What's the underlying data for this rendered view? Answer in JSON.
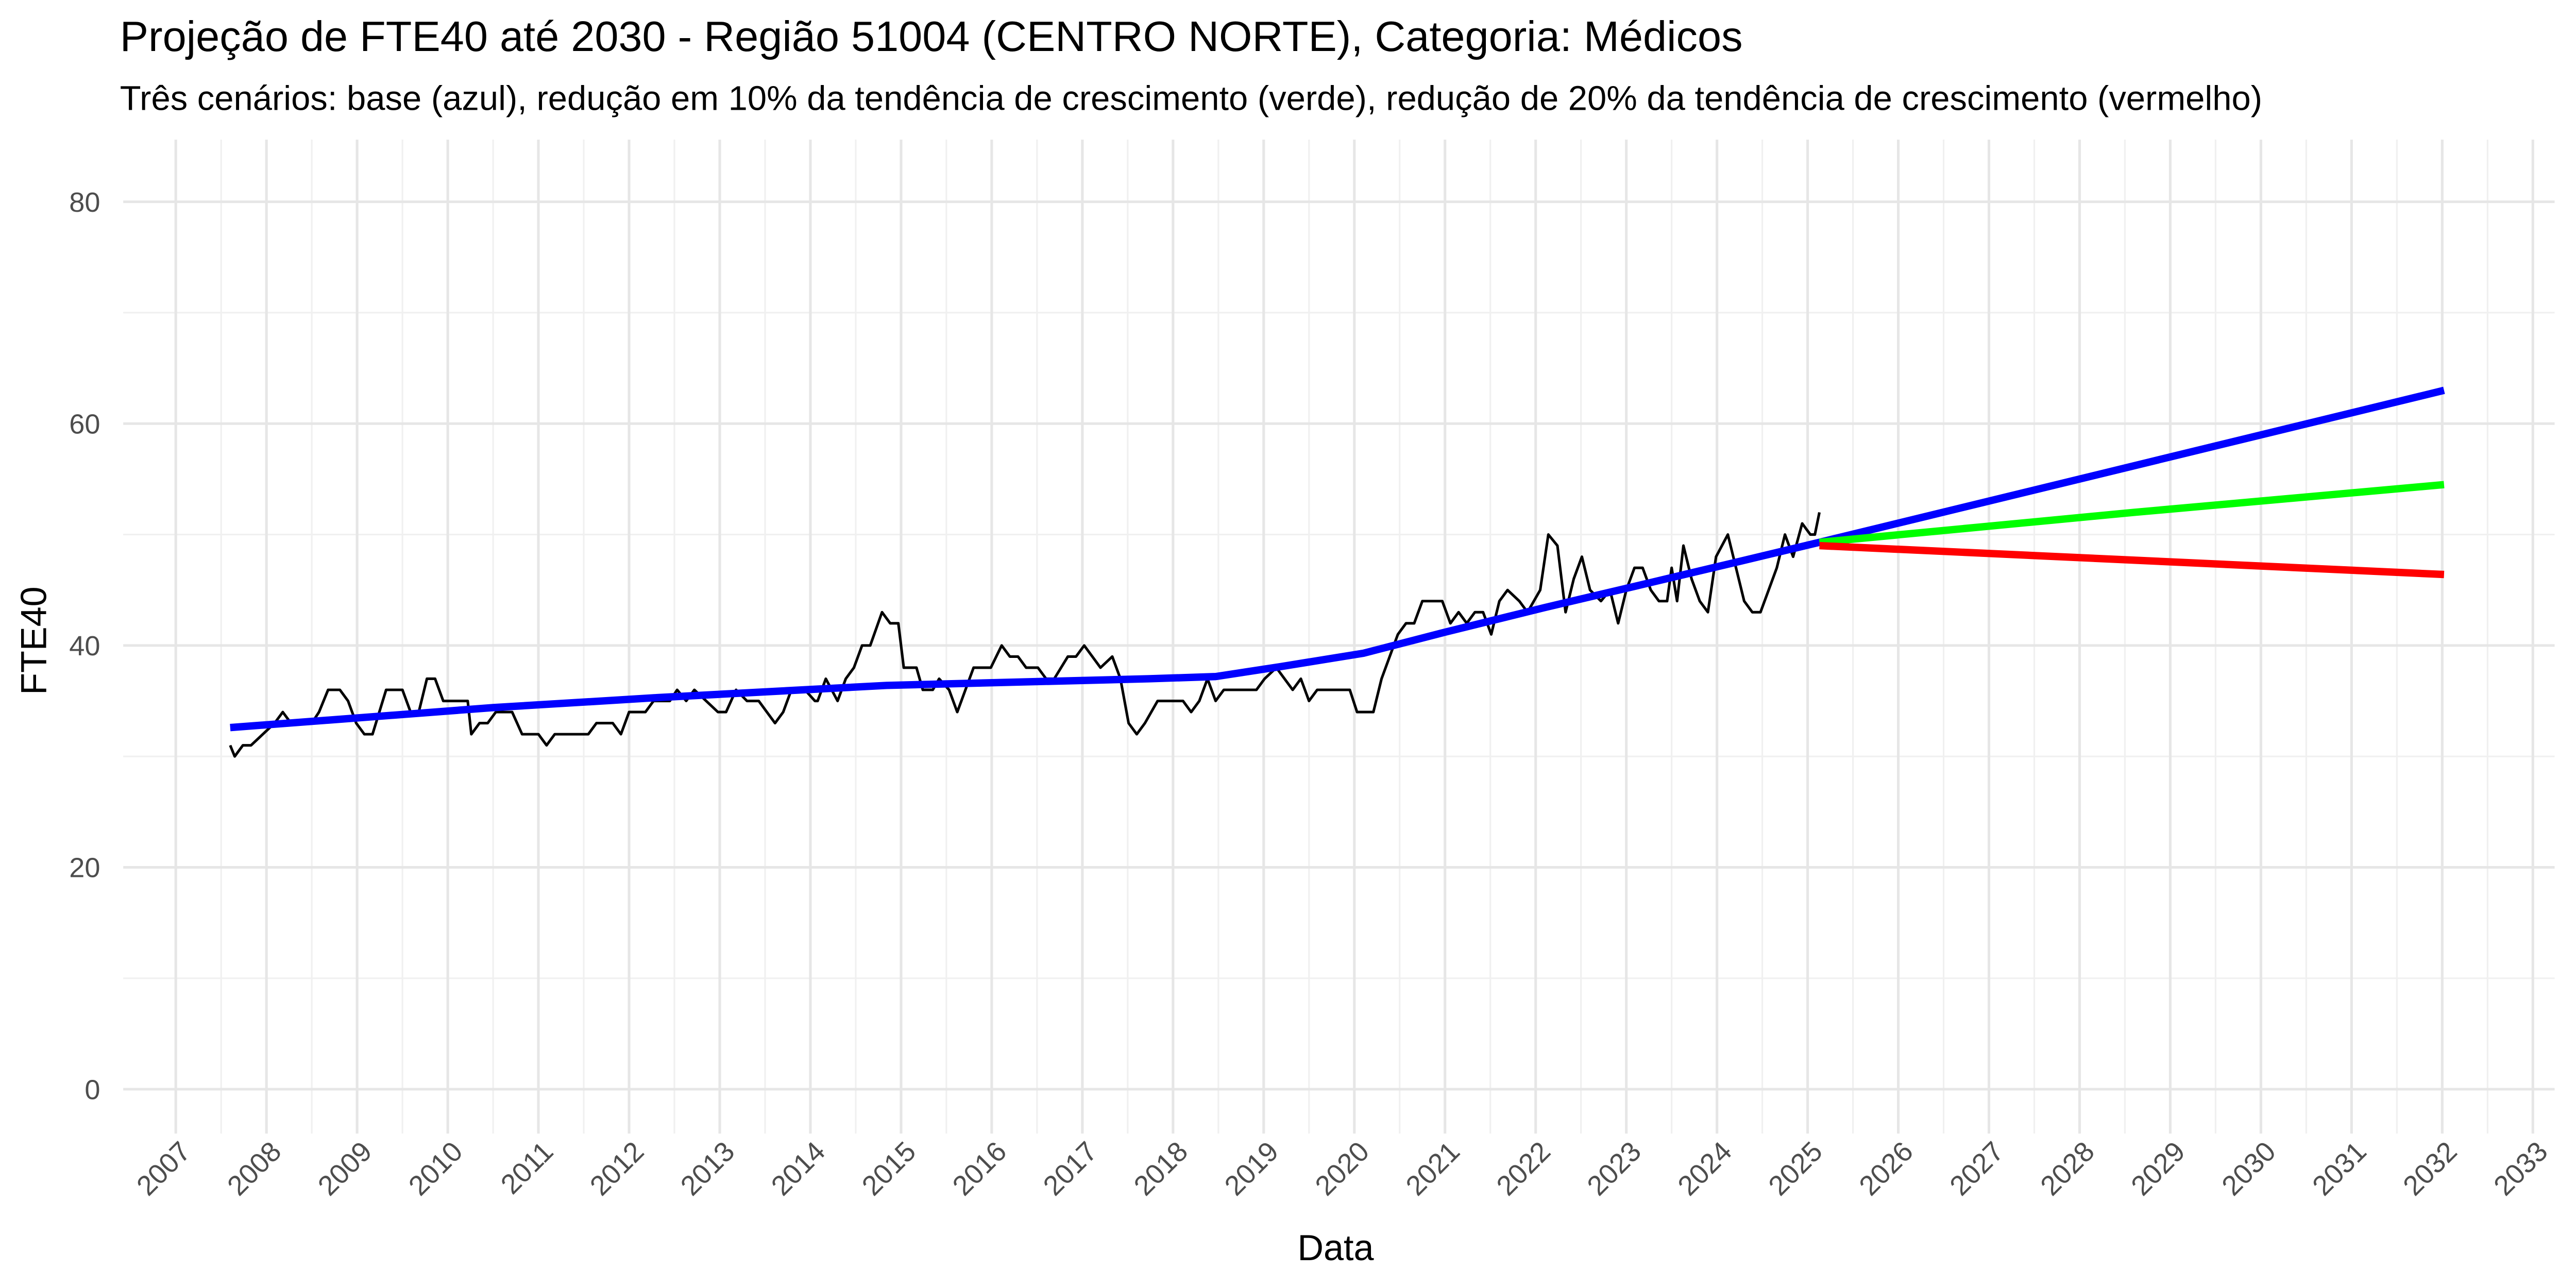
{
  "chart_data": {
    "type": "line",
    "title": "Projeção de FTE40 até 2030 - Região 51004 (CENTRO NORTE), Categoria: Médicos",
    "subtitle": "Três cenários: base (azul), redução em 10% da tendência de crescimento (verde), redução de 20% da tendência de crescimento (vermelho)",
    "x_label": "Data",
    "y_label": "FTE40",
    "xlim": [
      2006.42,
      2033.24
    ],
    "ylim": [
      -4,
      85.6
    ],
    "xticks": [
      2007,
      2008,
      2009,
      2010,
      2011,
      2012,
      2013,
      2014,
      2015,
      2016,
      2017,
      2018,
      2019,
      2020,
      2021,
      2022,
      2023,
      2024,
      2025,
      2026,
      2027,
      2028,
      2029,
      2030,
      2031,
      2032,
      2033
    ],
    "yticks": [
      0,
      20,
      40,
      60,
      80
    ],
    "grid": true,
    "series": [
      {
        "color": "#000000",
        "width": 1.6,
        "x": [
          2007.6,
          2007.65,
          2007.74,
          2007.83,
          2007.96,
          2008.09,
          2008.18,
          2008.27,
          2008.36,
          2008.5,
          2008.58,
          2008.68,
          2008.81,
          2008.9,
          2008.99,
          2009.08,
          2009.17,
          2009.32,
          2009.5,
          2009.59,
          2009.68,
          2009.77,
          2009.86,
          2009.95,
          2010.13,
          2010.22,
          2010.26,
          2010.35,
          2010.44,
          2010.53,
          2010.71,
          2010.82,
          2011.0,
          2011.09,
          2011.18,
          2011.37,
          2011.55,
          2011.64,
          2011.82,
          2011.91,
          2012.0,
          2012.18,
          2012.27,
          2012.45,
          2012.53,
          2012.63,
          2012.72,
          2012.85,
          2012.98,
          2013.07,
          2013.18,
          2013.3,
          2013.43,
          2013.52,
          2013.61,
          2013.7,
          2013.79,
          2013.94,
          2014.05,
          2014.08,
          2014.17,
          2014.3,
          2014.39,
          2014.48,
          2014.57,
          2014.66,
          2014.79,
          2014.88,
          2014.97,
          2015.03,
          2015.17,
          2015.24,
          2015.35,
          2015.42,
          2015.53,
          2015.62,
          2015.71,
          2015.8,
          2015.99,
          2016.11,
          2016.2,
          2016.29,
          2016.38,
          2016.51,
          2016.6,
          2016.69,
          2016.84,
          2016.93,
          2017.02,
          2017.11,
          2017.2,
          2017.33,
          2017.42,
          2017.51,
          2017.6,
          2017.69,
          2017.83,
          2018.11,
          2018.2,
          2018.29,
          2018.38,
          2018.47,
          2018.56,
          2018.92,
          2019.01,
          2019.14,
          2019.23,
          2019.32,
          2019.41,
          2019.5,
          2019.59,
          2019.95,
          2020.03,
          2020.21,
          2020.3,
          2020.39,
          2020.48,
          2020.57,
          2020.66,
          2020.75,
          2020.97,
          2021.06,
          2021.15,
          2021.24,
          2021.33,
          2021.42,
          2021.51,
          2021.6,
          2021.69,
          2021.82,
          2021.91,
          2022.05,
          2022.14,
          2022.24,
          2022.33,
          2022.42,
          2022.51,
          2022.6,
          2022.72,
          2022.82,
          2022.91,
          2023.0,
          2023.09,
          2023.18,
          2023.27,
          2023.36,
          2023.45,
          2023.5,
          2023.56,
          2023.63,
          2023.72,
          2023.81,
          2023.9,
          2023.99,
          2024.12,
          2024.21,
          2024.3,
          2024.39,
          2024.48,
          2024.57,
          2024.66,
          2024.75,
          2024.84,
          2024.94,
          2025.03,
          2025.08,
          2025.13
        ],
        "values": [
          31,
          30,
          31,
          31,
          32,
          33,
          34,
          33,
          33,
          33,
          34,
          36,
          36,
          35,
          33,
          32,
          32,
          36,
          36,
          34,
          34,
          37,
          37,
          35,
          35,
          35,
          32,
          33,
          33,
          34,
          34,
          32,
          32,
          31,
          32,
          32,
          32,
          33,
          33,
          32,
          34,
          34,
          35,
          35,
          36,
          35,
          36,
          35,
          34,
          34,
          36,
          35,
          35,
          34,
          33,
          34,
          36,
          36,
          35,
          35,
          37,
          35,
          37,
          38,
          40,
          40,
          43,
          42,
          42,
          38,
          38,
          36,
          36,
          37,
          36,
          34,
          36,
          38,
          38,
          40,
          39,
          39,
          38,
          38,
          37,
          37,
          39,
          39,
          40,
          39,
          38,
          39,
          37,
          33,
          32,
          33,
          35,
          35,
          34,
          35,
          37,
          35,
          36,
          36,
          37,
          38,
          37,
          36,
          37,
          35,
          36,
          36,
          34,
          34,
          37,
          39,
          41,
          42,
          42,
          44,
          44,
          42,
          43,
          42,
          43,
          43,
          41,
          44,
          45,
          44,
          43,
          45,
          50,
          49,
          43,
          46,
          48,
          45,
          44,
          45,
          42,
          45,
          47,
          47,
          45,
          44,
          44,
          47,
          44,
          49,
          46,
          44,
          43,
          48,
          50,
          47,
          44,
          43,
          43,
          45,
          47,
          50,
          48,
          51,
          50,
          50,
          52
        ]
      },
      {
        "color": "#0000ff",
        "width": 4.5,
        "x": [
          2007.6,
          2010.5,
          2012.31,
          2014.84,
          2017.74,
          2018.47,
          2019.19,
          2020.1,
          2021.0,
          2022.09,
          2023.18,
          2024.26,
          2025.13,
          2032.02
        ],
        "values": [
          32.6,
          34.4,
          35.3,
          36.4,
          37.0,
          37.2,
          38.1,
          39.3,
          41.2,
          43.4,
          45.5,
          47.6,
          49.3,
          63.0
        ]
      },
      {
        "color": "#00ff00",
        "width": 4.5,
        "x": [
          2025.13,
          2028.6,
          2032.02
        ],
        "values": [
          49.3,
          52.0,
          54.5
        ]
      },
      {
        "color": "#ff0000",
        "width": 4.5,
        "x": [
          2025.13,
          2032.02
        ],
        "values": [
          49.0,
          46.4
        ]
      }
    ]
  }
}
